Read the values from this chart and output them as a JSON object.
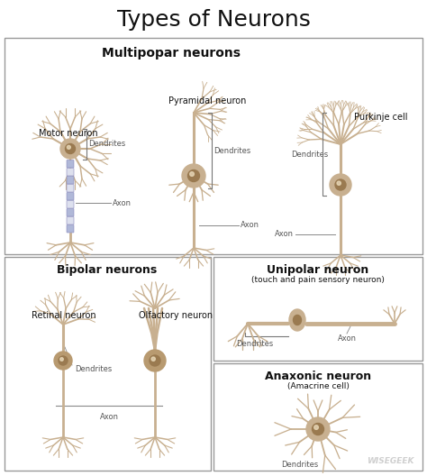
{
  "title": "Types of Neurons",
  "title_fontsize": 18,
  "title_font": "DejaVu Sans",
  "bg_color": "#ffffff",
  "border_color": "#999999",
  "neuron_color": "#c8b090",
  "neuron_dark": "#9a7a50",
  "neuron_mid": "#b89a70",
  "axon_blue": "#b0b8d8",
  "text_color": "#111111",
  "section_top_label": "Multipopar neurons",
  "section_bot_left_label": "Bipolar neurons",
  "section_bot_right_label1": "Unipolar neuron",
  "section_bot_right_label1b": "(touch and pain sensory neuron)",
  "section_bot_right_label2": "Anaxonic neuron",
  "section_bot_right_label2b": "(Amacrine cell)",
  "label_motor": "Motor neuron",
  "label_pyramidal": "Pyramidal neuron",
  "label_purkinje": "Purkinje cell",
  "label_retinal": "Retinal neuron",
  "label_olfactory": "Olfactory neuron",
  "label_dendrites": "Dendrites",
  "label_axon": "Axon",
  "watermark": "WISEGEEK",
  "label_fontsize": 7,
  "section_label_fontsize": 9
}
